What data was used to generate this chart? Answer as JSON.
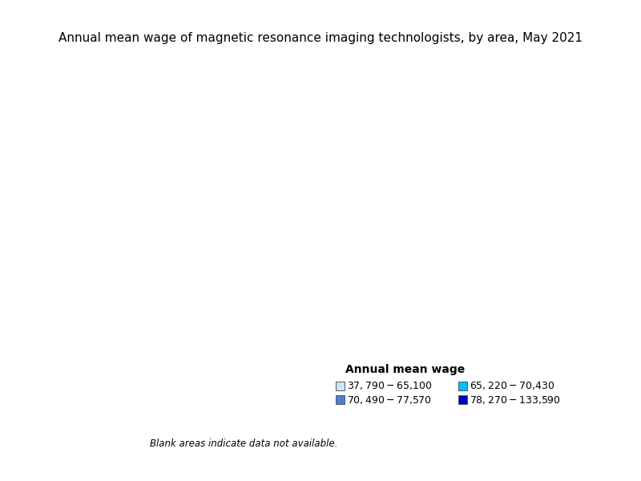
{
  "title": "Annual mean wage of magnetic resonance imaging technologists, by area, May 2021",
  "legend_title": "Annual mean wage",
  "legend_entries": [
    {
      "label": "$37,790 - $65,100",
      "color": "#c6e8f5"
    },
    {
      "label": "$65,220 - $70,430",
      "color": "#00bfff"
    },
    {
      "label": "$70,490 - $77,570",
      "color": "#4682d4"
    },
    {
      "label": "$78,270 - $133,590",
      "color": "#0000cc"
    }
  ],
  "blank_note": "Blank areas indicate data not available.",
  "background_color": "#ffffff",
  "title_fontsize": 11,
  "legend_title_fontsize": 10,
  "legend_fontsize": 9,
  "note_fontsize": 8.5,
  "map_edge_color": "#333333",
  "map_edge_width": 0.4
}
